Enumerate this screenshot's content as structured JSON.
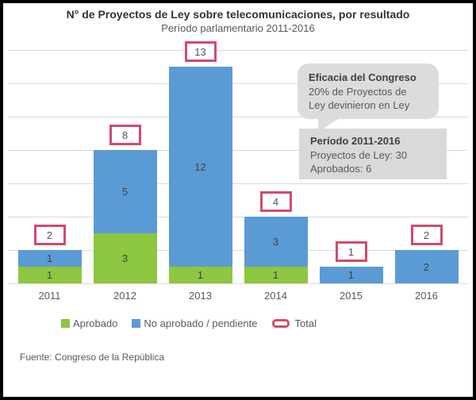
{
  "header": {
    "title": "N° de Proyectos de Ley sobre telecomunicaciones, por resultado",
    "subtitle": "Período parlamentario 2011-2016"
  },
  "chart_data": {
    "type": "bar",
    "stacked": true,
    "title": "N° de Proyectos de Ley sobre telecomunicaciones, por resultado",
    "subtitle": "Período parlamentario 2011-2016",
    "categories": [
      "2011",
      "2012",
      "2013",
      "2014",
      "2015",
      "2016"
    ],
    "series": [
      {
        "name": "Aprobado",
        "color": "#8dc63f",
        "values": [
          1,
          3,
          1,
          1,
          0,
          0
        ]
      },
      {
        "name": "No aprobado / pendiente",
        "color": "#5b9bd5",
        "values": [
          1,
          5,
          12,
          3,
          1,
          2
        ]
      }
    ],
    "totals": [
      2,
      8,
      13,
      4,
      1,
      2
    ],
    "ylabel": "",
    "xlabel": "",
    "ylim": [
      0,
      14
    ],
    "grid_step": 2,
    "grid": true,
    "legend_position": "bottom"
  },
  "annotations": {
    "bubble": {
      "title": "Eficacia del Congreso",
      "lines": [
        "20% de Proyectos de",
        "Ley devinieron en Ley"
      ]
    },
    "info_box": {
      "title": "Período 2011-2016",
      "lines": [
        "Proyectos de Ley: 30",
        "Aprobados: 6"
      ]
    }
  },
  "legend": {
    "approved_label": "Aprobado",
    "pending_label": "No aprobado / pendiente",
    "total_label": "Total"
  },
  "footer": {
    "source": "Fuente: Congreso  de la República"
  },
  "colors": {
    "approved": "#8dc63f",
    "pending": "#5b9bd5",
    "total_outline": "#d24a6e",
    "gridline": "#d9d9d9",
    "bubble_bg": "#dcdcdc",
    "info_box_bg": "#d9d9d9"
  }
}
